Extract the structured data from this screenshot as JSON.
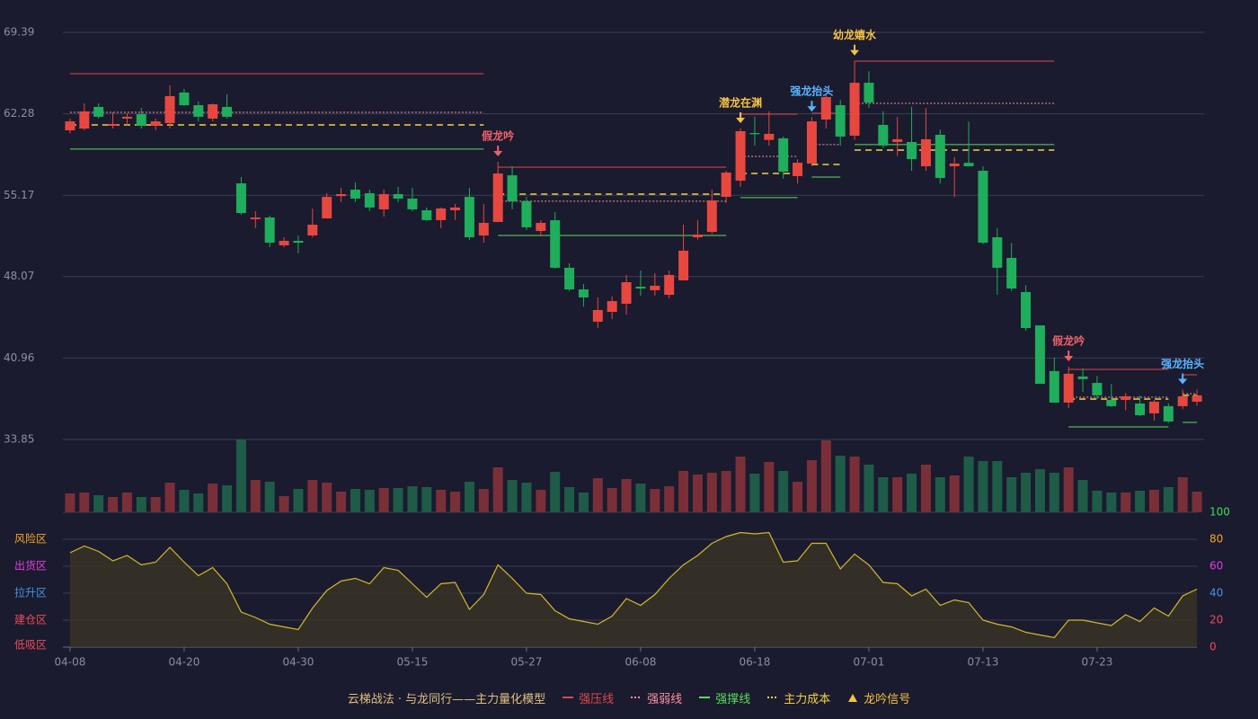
{
  "chart_data": {
    "type": "candlestick",
    "categories": [
      "04-08",
      null,
      null,
      null,
      null,
      null,
      null,
      null,
      "04-20",
      null,
      null,
      null,
      null,
      null,
      null,
      null,
      "04-30",
      null,
      null,
      null,
      null,
      null,
      null,
      null,
      "05-15",
      null,
      null,
      null,
      null,
      null,
      null,
      null,
      "05-27",
      null,
      null,
      null,
      null,
      null,
      null,
      null,
      "06-08",
      null,
      null,
      null,
      null,
      null,
      null,
      null,
      "06-18",
      null,
      null,
      null,
      null,
      null,
      null,
      null,
      "07-01",
      null,
      null,
      null,
      null,
      null,
      null,
      null,
      "07-13",
      null,
      null,
      null,
      null,
      null,
      null,
      null,
      "07-23",
      null,
      null,
      null,
      null,
      null,
      null,
      null
    ],
    "ohlc": [
      [
        60.84,
        61.86,
        60.6,
        61.62
      ],
      [
        60.99,
        63.19,
        60.84,
        62.49
      ],
      [
        62.88,
        63.19,
        61.86,
        62.02
      ],
      [
        61.23,
        62.41,
        61.0,
        61.39
      ],
      [
        61.86,
        62.33,
        61.23,
        62.02
      ],
      [
        62.25,
        62.8,
        61.0,
        61.23
      ],
      [
        61.23,
        61.86,
        60.84,
        61.62
      ],
      [
        61.47,
        64.76,
        61.0,
        63.82
      ],
      [
        64.14,
        64.45,
        62.96,
        63.03
      ],
      [
        63.03,
        63.35,
        61.62,
        62.02
      ],
      [
        61.86,
        63.19,
        61.62,
        63.11
      ],
      [
        62.88,
        63.98,
        61.86,
        62.02
      ],
      [
        56.21,
        56.76,
        53.47,
        53.62
      ],
      [
        53.08,
        53.78,
        52.29,
        53.23
      ],
      [
        53.23,
        53.39,
        50.64,
        51.03
      ],
      [
        50.8,
        51.5,
        50.64,
        51.19
      ],
      [
        51.19,
        51.66,
        50.1,
        51.03
      ],
      [
        51.66,
        54.0,
        51.5,
        52.6
      ],
      [
        53.15,
        55.35,
        53.15,
        55.03
      ],
      [
        55.1,
        55.82,
        54.57,
        55.27
      ],
      [
        55.66,
        56.29,
        54.57,
        54.88
      ],
      [
        55.35,
        55.66,
        53.78,
        54.1
      ],
      [
        53.94,
        55.66,
        53.31,
        55.27
      ],
      [
        55.27,
        55.9,
        54.57,
        54.88
      ],
      [
        54.88,
        55.82,
        53.78,
        53.94
      ],
      [
        53.86,
        54.1,
        52.92,
        53.0
      ],
      [
        53.0,
        54.1,
        52.29,
        54.02
      ],
      [
        53.86,
        54.41,
        53.0,
        54.1
      ],
      [
        55.03,
        55.82,
        51.27,
        51.5
      ],
      [
        51.66,
        54.41,
        51.03,
        52.76
      ],
      [
        52.84,
        58.09,
        52.84,
        57.07
      ],
      [
        56.91,
        57.7,
        53.94,
        54.65
      ],
      [
        54.65,
        55.03,
        52.13,
        52.37
      ],
      [
        52.05,
        53.0,
        51.58,
        52.76
      ],
      [
        52.99,
        53.7,
        48.76,
        48.84
      ],
      [
        48.84,
        49.23,
        46.8,
        46.95
      ],
      [
        46.95,
        47.42,
        45.46,
        46.25
      ],
      [
        44.13,
        46.25,
        43.58,
        45.15
      ],
      [
        44.99,
        46.33,
        44.37,
        45.93
      ],
      [
        45.7,
        48.21,
        44.76,
        47.58
      ],
      [
        47.19,
        48.6,
        46.4,
        47.03
      ],
      [
        46.88,
        48.37,
        46.4,
        47.27
      ],
      [
        46.48,
        48.6,
        46.17,
        48.21
      ],
      [
        47.74,
        52.6,
        47.74,
        50.33
      ],
      [
        51.5,
        53.0,
        51.3,
        51.74
      ],
      [
        51.97,
        55.66,
        51.8,
        54.72
      ],
      [
        55.03,
        57.31,
        54.5,
        57.15
      ],
      [
        56.44,
        61.0,
        55.9,
        60.76
      ],
      [
        60.6,
        62.02,
        59.5,
        60.5
      ],
      [
        60.0,
        62.5,
        59.5,
        60.53
      ],
      [
        60.14,
        60.3,
        56.6,
        57.23
      ],
      [
        56.84,
        58.3,
        56.2,
        58.01
      ],
      [
        57.94,
        62.0,
        57.7,
        61.62
      ],
      [
        61.78,
        63.9,
        61.0,
        63.74
      ],
      [
        63.03,
        63.5,
        59.5,
        60.29
      ],
      [
        60.37,
        66.9,
        60.0,
        64.99
      ],
      [
        64.99,
        66.0,
        62.8,
        63.27
      ],
      [
        61.31,
        62.5,
        59.3,
        59.51
      ],
      [
        59.82,
        62.0,
        58.6,
        60.06
      ],
      [
        59.82,
        62.9,
        57.3,
        58.33
      ],
      [
        57.7,
        62.8,
        57.3,
        60.06
      ],
      [
        60.45,
        60.9,
        56.2,
        56.68
      ],
      [
        57.7,
        58.5,
        55.0,
        57.94
      ],
      [
        58.0,
        61.6,
        57.7,
        57.7
      ],
      [
        57.31,
        57.7,
        50.9,
        51.03
      ],
      [
        51.5,
        52.3,
        46.5,
        48.84
      ],
      [
        49.7,
        51.0,
        46.8,
        47.03
      ],
      [
        46.72,
        47.3,
        43.35,
        43.58
      ],
      [
        43.81,
        43.81,
        38.7,
        38.71
      ],
      [
        39.82,
        41.0,
        37.1,
        37.07
      ],
      [
        37.07,
        40.2,
        36.6,
        39.59
      ],
      [
        39.35,
        40.05,
        38.0,
        39.12
      ],
      [
        38.79,
        39.4,
        37.4,
        37.7
      ],
      [
        37.31,
        38.7,
        36.7,
        36.76
      ],
      [
        37.31,
        37.9,
        36.4,
        37.62
      ],
      [
        36.99,
        37.7,
        35.9,
        35.97
      ],
      [
        36.13,
        37.3,
        35.5,
        37.15
      ],
      [
        36.76,
        37.0,
        35.3,
        35.42
      ],
      [
        36.76,
        38.2,
        36.5,
        37.62
      ],
      [
        37.15,
        38.2,
        36.8,
        37.7
      ]
    ],
    "up_color": "#e8473f",
    "down_color": "#1fae5b",
    "ylim": [
      33.85,
      69.39
    ],
    "yticks": [
      33.85,
      40.96,
      48.07,
      55.17,
      62.28,
      69.39
    ],
    "grid": true,
    "levels": [
      {
        "name": "强压线",
        "color": "#e0474f",
        "style": "solid",
        "values": [
          65.78,
          65.78,
          65.78,
          65.78,
          65.78,
          65.78,
          65.78,
          65.78,
          65.78,
          65.78,
          65.78,
          65.78,
          65.78,
          65.78,
          65.78,
          65.78,
          65.78,
          65.78,
          65.78,
          65.78,
          65.78,
          65.78,
          65.78,
          65.78,
          65.78,
          65.78,
          65.78,
          65.78,
          65.78,
          65.78,
          57.62,
          57.62,
          57.62,
          57.62,
          57.62,
          57.62,
          57.62,
          57.62,
          57.62,
          57.62,
          57.62,
          57.62,
          57.62,
          57.62,
          57.62,
          57.62,
          57.62,
          62.25,
          62.25,
          62.25,
          62.25,
          62.25,
          62.33,
          62.33,
          62.33,
          66.88,
          66.88,
          66.88,
          66.88,
          66.88,
          66.88,
          66.88,
          66.88,
          66.88,
          66.88,
          66.88,
          66.88,
          66.88,
          66.88,
          66.88,
          39.97,
          39.97,
          39.97,
          39.97,
          39.97,
          39.97,
          39.97,
          39.97,
          39.5,
          39.5
        ]
      },
      {
        "name": "强弱线",
        "color": "#ff8fa3",
        "style": "dotted",
        "values": [
          62.41,
          62.41,
          62.41,
          62.41,
          62.41,
          62.41,
          62.41,
          62.41,
          62.41,
          62.41,
          62.41,
          62.41,
          62.41,
          62.41,
          62.41,
          62.41,
          62.41,
          62.41,
          62.41,
          62.41,
          62.41,
          62.41,
          62.41,
          62.41,
          62.41,
          62.41,
          62.41,
          62.41,
          62.41,
          62.41,
          54.65,
          54.65,
          54.65,
          54.65,
          54.65,
          54.65,
          54.65,
          54.65,
          54.65,
          54.65,
          54.65,
          54.65,
          54.65,
          54.65,
          54.65,
          54.65,
          54.65,
          58.56,
          58.56,
          58.56,
          58.56,
          58.56,
          59.59,
          59.59,
          59.59,
          63.19,
          63.19,
          63.19,
          63.19,
          63.19,
          63.19,
          63.19,
          63.19,
          63.19,
          63.19,
          63.19,
          63.19,
          63.19,
          63.19,
          63.19,
          37.54,
          37.54,
          37.54,
          37.54,
          37.54,
          37.54,
          37.54,
          37.54,
          37.85,
          37.85
        ]
      },
      {
        "name": "强撑线",
        "color": "#5cdb5c",
        "style": "solid",
        "values": [
          59.2,
          59.2,
          59.2,
          59.2,
          59.2,
          59.2,
          59.2,
          59.2,
          59.2,
          59.2,
          59.2,
          59.2,
          59.2,
          59.2,
          59.2,
          59.2,
          59.2,
          59.2,
          59.2,
          59.2,
          59.2,
          59.2,
          59.2,
          59.2,
          59.2,
          59.2,
          59.2,
          59.2,
          59.2,
          59.2,
          51.66,
          51.66,
          51.66,
          51.66,
          51.66,
          51.66,
          51.66,
          51.66,
          51.66,
          51.66,
          51.66,
          51.66,
          51.66,
          51.66,
          51.66,
          51.66,
          51.66,
          54.96,
          54.96,
          54.96,
          54.96,
          54.96,
          56.76,
          56.76,
          56.76,
          59.59,
          59.59,
          59.59,
          59.59,
          59.59,
          59.59,
          59.59,
          59.59,
          59.59,
          59.59,
          59.59,
          59.59,
          59.59,
          59.59,
          59.59,
          34.95,
          34.95,
          34.95,
          34.95,
          34.95,
          34.95,
          34.95,
          34.95,
          35.34,
          35.34
        ]
      },
      {
        "name": "主力成本",
        "color": "#f5d142",
        "style": "dashed",
        "values": [
          61.31,
          61.31,
          61.31,
          61.31,
          61.31,
          61.31,
          61.31,
          61.31,
          61.31,
          61.31,
          61.31,
          61.31,
          61.31,
          61.31,
          61.31,
          61.31,
          61.31,
          61.31,
          61.31,
          61.31,
          61.31,
          61.31,
          61.31,
          61.31,
          61.31,
          61.31,
          61.31,
          61.31,
          61.31,
          61.31,
          55.27,
          55.27,
          55.27,
          55.27,
          55.27,
          55.27,
          55.27,
          55.27,
          55.27,
          55.27,
          55.27,
          55.27,
          55.27,
          55.27,
          55.27,
          55.27,
          55.27,
          57.07,
          57.07,
          57.07,
          57.07,
          57.07,
          57.86,
          57.86,
          57.86,
          59.11,
          59.11,
          59.11,
          59.11,
          59.11,
          59.11,
          59.11,
          59.11,
          59.11,
          59.11,
          59.11,
          59.11,
          59.11,
          59.11,
          59.11,
          37.38,
          37.38,
          37.38,
          37.38,
          37.38,
          37.38,
          37.38,
          37.38,
          37.7,
          37.7
        ]
      }
    ],
    "signals": [
      null,
      null,
      null,
      null,
      null,
      null,
      null,
      null,
      null,
      null,
      null,
      null,
      null,
      null,
      null,
      null,
      null,
      null,
      null,
      null,
      null,
      null,
      null,
      null,
      null,
      null,
      null,
      null,
      null,
      null,
      "假龙吟",
      null,
      null,
      null,
      null,
      null,
      null,
      null,
      null,
      null,
      null,
      null,
      null,
      null,
      null,
      null,
      null,
      "潜龙在渊",
      null,
      null,
      null,
      null,
      "强龙抬头",
      null,
      null,
      "幼龙嬉水",
      null,
      null,
      null,
      null,
      null,
      null,
      null,
      null,
      null,
      null,
      null,
      null,
      null,
      null,
      "假龙吟",
      null,
      null,
      null,
      null,
      null,
      null,
      null,
      "强龙抬头",
      null
    ],
    "signal_colors": {
      "假龙吟": "#f0606a",
      "潜龙在渊": "#f5c242",
      "强龙抬头": "#5ab4ff",
      "幼龙嬉水": "#f5c242"
    },
    "signal_legend": "龙吟信号",
    "signal_legend_color": "#f5c242",
    "model_title": "云梯战法 · 与龙同行——主力量化模型",
    "model_title_color": "#e0c080",
    "volume": {
      "values": [
        21,
        22,
        19,
        17,
        22,
        17,
        17,
        33,
        25,
        21,
        32,
        30,
        81,
        36,
        34,
        18,
        26,
        36,
        33,
        23,
        26,
        25,
        27,
        27,
        29,
        28,
        25,
        23,
        34,
        26,
        50,
        36,
        33,
        25,
        45,
        28,
        22,
        38,
        27,
        37,
        32,
        26,
        29,
        46,
        42,
        44,
        46,
        62,
        43,
        56,
        46,
        34,
        58,
        80,
        63,
        62,
        53,
        39,
        39,
        43,
        53,
        39,
        41,
        62,
        57,
        57,
        39,
        44,
        48,
        44,
        50,
        36,
        24,
        22,
        22,
        24,
        25,
        28,
        39,
        23
      ],
      "up_color": "#7a2f38",
      "down_color": "#1e5c48"
    },
    "oscillator": {
      "values": [
        70,
        75,
        71,
        64,
        68,
        61,
        63,
        74,
        63,
        53,
        59,
        47,
        26,
        22,
        17,
        15,
        13,
        29,
        42,
        49,
        51,
        47,
        59,
        57,
        47,
        37,
        47,
        48,
        28,
        39,
        61,
        51,
        40,
        39,
        27,
        21,
        19,
        17,
        23,
        36,
        31,
        39,
        51,
        61,
        68,
        77,
        82,
        85,
        84,
        85,
        63,
        64,
        77,
        77,
        58,
        69,
        61,
        48,
        47,
        38,
        43,
        31,
        35,
        33,
        20,
        17,
        15,
        11,
        9,
        7,
        20,
        20,
        18,
        16,
        24,
        19,
        29,
        23,
        38,
        43
      ],
      "ylim": [
        0,
        100
      ],
      "yticks": [
        0,
        20,
        40,
        60,
        80,
        100
      ],
      "tick_colors": [
        "#f04a5a",
        "#f04a5a",
        "#4a90e2",
        "#e040e0",
        "#f5a623",
        "#3ddc5a"
      ],
      "zones": [
        {
          "label": "低吸区",
          "value": 0,
          "color": "#f04a5a"
        },
        {
          "label": "建仓区",
          "value": 20,
          "color": "#f04a5a"
        },
        {
          "label": "拉升区",
          "value": 40,
          "color": "#4a90e2"
        },
        {
          "label": "出货区",
          "value": 60,
          "color": "#e040e0"
        },
        {
          "label": "风险区",
          "value": 80,
          "color": "#f5a623"
        }
      ],
      "line_color": "#d4b82a",
      "fill_color": "#3a3526"
    }
  }
}
